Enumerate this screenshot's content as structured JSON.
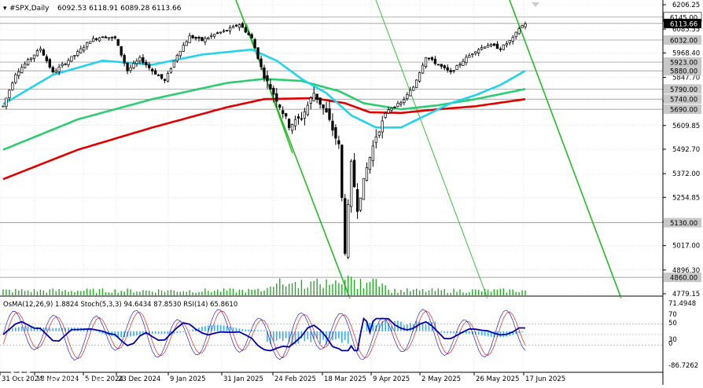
{
  "header": {
    "symbol": "#SPX,Daily",
    "ohlc": "6092.53 6118.91 6089.28 6113.66"
  },
  "indicator_header": "OsMA(12,26,9) 1.8824  Stoch(5,3,3) 94.6434 87.8530  RSI(14) 65.8610",
  "price_scale": [
    "6206.25",
    "6085.55",
    "5968.40",
    "5847.70",
    "5730.55",
    "5609.85",
    "5492.70",
    "5372.00",
    "5254.85",
    "5134.15",
    "5017.00",
    "4896.30",
    "4779.15"
  ],
  "level_tags": [
    {
      "label": "6145.00",
      "style": "white"
    },
    {
      "label": "6113.66",
      "style": "black"
    },
    {
      "label": "6032.00",
      "style": "gray"
    },
    {
      "label": "5923.00",
      "style": "gray"
    },
    {
      "label": "5880.00",
      "style": "gray"
    },
    {
      "label": "5790.00",
      "style": "gray"
    },
    {
      "label": "5740.00",
      "style": "gray"
    },
    {
      "label": "5690.00",
      "style": "gray"
    },
    {
      "label": "5130.00",
      "style": "gray"
    },
    {
      "label": "4860.00",
      "style": "gray"
    }
  ],
  "indicator_scale": [
    "71.4948",
    "70",
    "50",
    "30",
    "0",
    "-86.7262"
  ],
  "date_labels": [
    "31 Oct 2024",
    "18 Nov 2024",
    "5 Dec 2024",
    "23 Dec 2024",
    "9 Jan 2025",
    "31 Jan 2025",
    "24 Feb 2025",
    "18 Mar 2025",
    "9 Apr 2025",
    "2 May 2025",
    "26 May 2025",
    "17 Jun 2025"
  ],
  "watermark": {
    "brand": "instaforex",
    "tagline": "Instant Forex Trading"
  },
  "colors": {
    "ema_fast": "#22d3ee",
    "ema_mid": "#2ecc71",
    "ema_slow": "#e00000",
    "trend_lines": "#22bb22",
    "candles": "#000000",
    "volume": "#22aa22",
    "osma": "#33aaff",
    "stoch_main": "#0000cc",
    "stoch_signal": "#dd0000",
    "rsi": "#0000aa"
  },
  "chart_data": {
    "type": "candlestick",
    "title": "#SPX,Daily",
    "timeframe": "Daily",
    "x_range": [
      "2024-10-31",
      "2025-06-26"
    ],
    "y_range": [
      4779.15,
      6206.25
    ],
    "last_price": 6113.66,
    "last_ohlc": {
      "open": 6092.53,
      "high": 6118.91,
      "low": 6089.28,
      "close": 6113.66
    },
    "horizontal_levels": [
      6145.0,
      6113.66,
      6032.0,
      5923.0,
      5880.0,
      5790.0,
      5740.0,
      5690.0,
      5130.0,
      4860.0
    ],
    "close_series": [
      {
        "x": 0,
        "y": 5705
      },
      {
        "x": 4,
        "y": 5865
      },
      {
        "x": 8,
        "y": 5930
      },
      {
        "x": 12,
        "y": 5990
      },
      {
        "x": 16,
        "y": 5870
      },
      {
        "x": 20,
        "y": 5920
      },
      {
        "x": 24,
        "y": 5970
      },
      {
        "x": 28,
        "y": 6030
      },
      {
        "x": 32,
        "y": 6050
      },
      {
        "x": 36,
        "y": 6040
      },
      {
        "x": 40,
        "y": 5880
      },
      {
        "x": 44,
        "y": 5940
      },
      {
        "x": 48,
        "y": 5880
      },
      {
        "x": 52,
        "y": 5830
      },
      {
        "x": 56,
        "y": 5960
      },
      {
        "x": 60,
        "y": 6050
      },
      {
        "x": 64,
        "y": 6030
      },
      {
        "x": 68,
        "y": 6060
      },
      {
        "x": 72,
        "y": 6080
      },
      {
        "x": 76,
        "y": 6110
      },
      {
        "x": 80,
        "y": 6040
      },
      {
        "x": 84,
        "y": 5850
      },
      {
        "x": 88,
        "y": 5740
      },
      {
        "x": 92,
        "y": 5610
      },
      {
        "x": 96,
        "y": 5650
      },
      {
        "x": 100,
        "y": 5770
      },
      {
        "x": 104,
        "y": 5670
      },
      {
        "x": 108,
        "y": 5510
      },
      {
        "x": 110,
        "y": 4990
      },
      {
        "x": 112,
        "y": 5420
      },
      {
        "x": 114,
        "y": 5200
      },
      {
        "x": 117,
        "y": 5400
      },
      {
        "x": 120,
        "y": 5560
      },
      {
        "x": 124,
        "y": 5690
      },
      {
        "x": 128,
        "y": 5720
      },
      {
        "x": 132,
        "y": 5800
      },
      {
        "x": 136,
        "y": 5950
      },
      {
        "x": 140,
        "y": 5910
      },
      {
        "x": 144,
        "y": 5870
      },
      {
        "x": 148,
        "y": 5930
      },
      {
        "x": 152,
        "y": 5980
      },
      {
        "x": 156,
        "y": 6010
      },
      {
        "x": 160,
        "y": 5990
      },
      {
        "x": 164,
        "y": 6040
      },
      {
        "x": 166,
        "y": 6090
      },
      {
        "x": 168,
        "y": 6114
      }
    ],
    "ema_fast": [
      {
        "x": 0,
        "y": 5715
      },
      {
        "x": 16,
        "y": 5860
      },
      {
        "x": 32,
        "y": 5930
      },
      {
        "x": 48,
        "y": 5910
      },
      {
        "x": 64,
        "y": 5960
      },
      {
        "x": 80,
        "y": 5985
      },
      {
        "x": 88,
        "y": 5930
      },
      {
        "x": 96,
        "y": 5840
      },
      {
        "x": 104,
        "y": 5770
      },
      {
        "x": 112,
        "y": 5660
      },
      {
        "x": 120,
        "y": 5600
      },
      {
        "x": 128,
        "y": 5600
      },
      {
        "x": 136,
        "y": 5660
      },
      {
        "x": 144,
        "y": 5720
      },
      {
        "x": 152,
        "y": 5760
      },
      {
        "x": 160,
        "y": 5810
      },
      {
        "x": 168,
        "y": 5880
      }
    ],
    "ema_mid": [
      {
        "x": 0,
        "y": 5490
      },
      {
        "x": 24,
        "y": 5640
      },
      {
        "x": 48,
        "y": 5740
      },
      {
        "x": 72,
        "y": 5820
      },
      {
        "x": 84,
        "y": 5840
      },
      {
        "x": 96,
        "y": 5830
      },
      {
        "x": 108,
        "y": 5780
      },
      {
        "x": 116,
        "y": 5720
      },
      {
        "x": 128,
        "y": 5690
      },
      {
        "x": 140,
        "y": 5710
      },
      {
        "x": 152,
        "y": 5740
      },
      {
        "x": 168,
        "y": 5790
      }
    ],
    "ema_slow": [
      {
        "x": 0,
        "y": 5345
      },
      {
        "x": 24,
        "y": 5490
      },
      {
        "x": 48,
        "y": 5600
      },
      {
        "x": 72,
        "y": 5700
      },
      {
        "x": 84,
        "y": 5740
      },
      {
        "x": 100,
        "y": 5745
      },
      {
        "x": 110,
        "y": 5720
      },
      {
        "x": 118,
        "y": 5675
      },
      {
        "x": 128,
        "y": 5672
      },
      {
        "x": 140,
        "y": 5690
      },
      {
        "x": 152,
        "y": 5705
      },
      {
        "x": 168,
        "y": 5740
      }
    ],
    "x_categories_note": "bar index, 0 = 31 Oct 2024, 168 = last bar (late Jun 2025)",
    "series": [
      {
        "name": "OsMA(12,26,9)",
        "last": 1.8824
      },
      {
        "name": "Stoch(5,3,3) main",
        "last": 94.6434
      },
      {
        "name": "Stoch(5,3,3) signal",
        "last": 87.853
      },
      {
        "name": "RSI(14)",
        "last": 65.861
      }
    ]
  }
}
